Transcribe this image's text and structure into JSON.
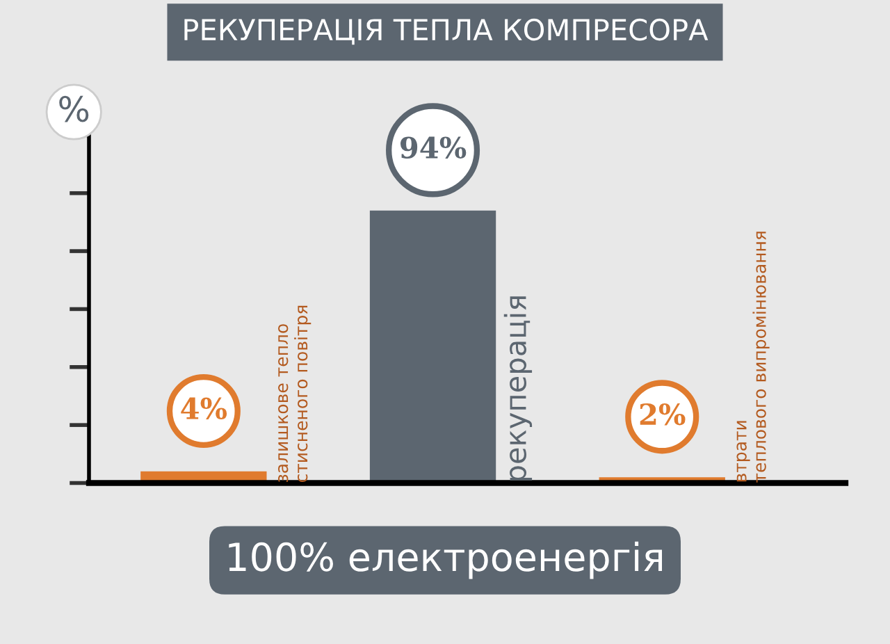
{
  "chart_data": {
    "type": "bar",
    "title": "РЕКУПЕРАЦІЯ ТЕПЛА КОМПРЕСОРА",
    "ylabel": "%",
    "categories": [
      "залишкове тепло\nстисненого повітря",
      "рекуперація",
      "втрати\nтеплового випромінювання"
    ],
    "values": [
      4,
      94,
      2
    ],
    "colors": [
      "#e07b2e",
      "#5c6670",
      "#e07b2e"
    ],
    "value_labels": [
      "4%",
      "94%",
      "2%"
    ],
    "annotations": [
      "100% електроенергія"
    ],
    "tick_labels": false
  }
}
